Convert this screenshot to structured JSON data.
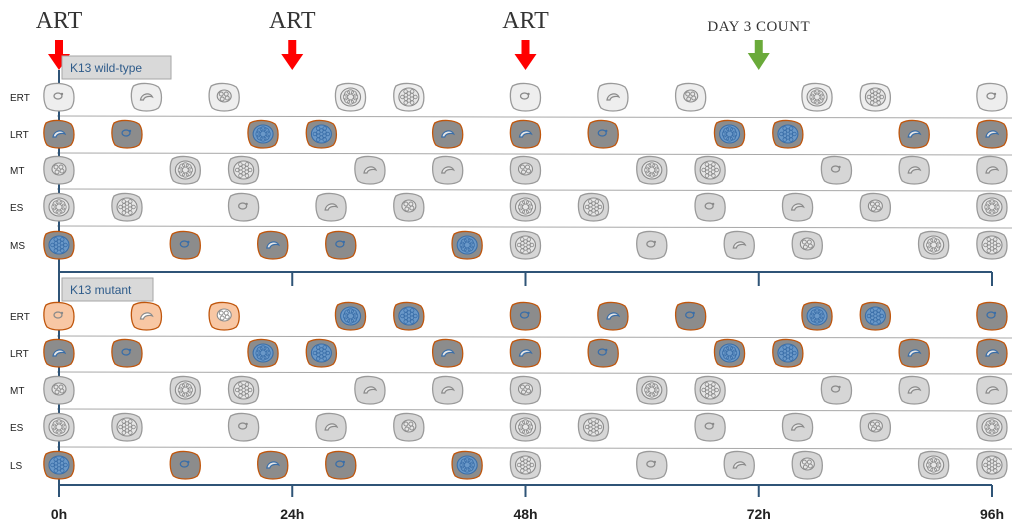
{
  "colors": {
    "art_arrow": "#ff0000",
    "count_arrow": "#6aaa3a",
    "axis": "#2f5477",
    "panel_label_bg": "#d9d9d9",
    "panel_label_text": "#2e5b8a",
    "cell_light": "#eeeeee",
    "cell_mid": "#d6d6d6",
    "cell_dark": "#8c8c8c",
    "cell_infected_outline": "#c0560c",
    "cell_peach": "#f8c7a4",
    "parasite_blue": "#3a6ea8"
  },
  "arrows": [
    {
      "label": "ART",
      "type": "art",
      "at_hours": 0
    },
    {
      "label": "ART",
      "type": "art",
      "at_hours": 24
    },
    {
      "label": "ART",
      "type": "art",
      "at_hours": 48
    },
    {
      "label": "DAY 3 COUNT",
      "type": "count",
      "at_hours": 72
    }
  ],
  "x_axis": {
    "ticks": [
      "0h",
      "24h",
      "48h",
      "72h",
      "96h"
    ],
    "hours": [
      0,
      24,
      48,
      72,
      96
    ]
  },
  "panels": [
    {
      "label": "K13 wild-type",
      "rows": [
        {
          "label": "ERT",
          "cells": [
            {
              "h": 0,
              "stage": "ring",
              "style": "white"
            },
            {
              "h": 9,
              "stage": "troph",
              "style": "white"
            },
            {
              "h": 17,
              "stage": "early-schiz",
              "style": "white"
            },
            {
              "h": 30,
              "stage": "schizont",
              "style": "white"
            },
            {
              "h": 36,
              "stage": "segmenter",
              "style": "white"
            },
            {
              "h": 48,
              "stage": "ring",
              "style": "white"
            },
            {
              "h": 57,
              "stage": "troph",
              "style": "white"
            },
            {
              "h": 65,
              "stage": "early-schiz",
              "style": "white"
            },
            {
              "h": 78,
              "stage": "schizont",
              "style": "white"
            },
            {
              "h": 84,
              "stage": "segmenter",
              "style": "white"
            },
            {
              "h": 96,
              "stage": "ring",
              "style": "white"
            }
          ]
        },
        {
          "label": "LRT",
          "cells": [
            {
              "h": 0,
              "stage": "troph",
              "style": "infected"
            },
            {
              "h": 7,
              "stage": "ring",
              "style": "infected"
            },
            {
              "h": 21,
              "stage": "schizont",
              "style": "infected-blue"
            },
            {
              "h": 27,
              "stage": "segmenter",
              "style": "infected-blue"
            },
            {
              "h": 40,
              "stage": "troph",
              "style": "infected"
            },
            {
              "h": 48,
              "stage": "troph",
              "style": "infected"
            },
            {
              "h": 56,
              "stage": "ring",
              "style": "infected"
            },
            {
              "h": 69,
              "stage": "schizont",
              "style": "infected-blue"
            },
            {
              "h": 75,
              "stage": "segmenter",
              "style": "infected-blue"
            },
            {
              "h": 88,
              "stage": "troph",
              "style": "infected"
            },
            {
              "h": 96,
              "stage": "troph",
              "style": "infected"
            }
          ]
        },
        {
          "label": "MT",
          "cells": [
            {
              "h": 0,
              "stage": "early-schiz",
              "style": "grey"
            },
            {
              "h": 13,
              "stage": "schizont",
              "style": "grey"
            },
            {
              "h": 19,
              "stage": "segmenter",
              "style": "grey"
            },
            {
              "h": 32,
              "stage": "troph",
              "style": "grey"
            },
            {
              "h": 40,
              "stage": "troph",
              "style": "grey"
            },
            {
              "h": 48,
              "stage": "early-schiz",
              "style": "grey"
            },
            {
              "h": 61,
              "stage": "schizont",
              "style": "grey"
            },
            {
              "h": 67,
              "stage": "segmenter",
              "style": "grey"
            },
            {
              "h": 80,
              "stage": "ring",
              "style": "grey"
            },
            {
              "h": 88,
              "stage": "troph",
              "style": "grey"
            },
            {
              "h": 96,
              "stage": "troph",
              "style": "grey"
            }
          ]
        },
        {
          "label": "ES",
          "cells": [
            {
              "h": 0,
              "stage": "schizont",
              "style": "grey"
            },
            {
              "h": 7,
              "stage": "segmenter",
              "style": "grey"
            },
            {
              "h": 19,
              "stage": "ring",
              "style": "grey"
            },
            {
              "h": 28,
              "stage": "troph",
              "style": "grey"
            },
            {
              "h": 36,
              "stage": "early-schiz",
              "style": "grey"
            },
            {
              "h": 48,
              "stage": "schizont",
              "style": "grey"
            },
            {
              "h": 55,
              "stage": "segmenter",
              "style": "grey"
            },
            {
              "h": 67,
              "stage": "ring",
              "style": "grey"
            },
            {
              "h": 76,
              "stage": "troph",
              "style": "grey"
            },
            {
              "h": 84,
              "stage": "early-schiz",
              "style": "grey"
            },
            {
              "h": 96,
              "stage": "schizont",
              "style": "grey"
            }
          ]
        },
        {
          "label": "MS",
          "cells": [
            {
              "h": 0,
              "stage": "segmenter",
              "style": "infected-blue"
            },
            {
              "h": 13,
              "stage": "ring",
              "style": "infected"
            },
            {
              "h": 22,
              "stage": "troph",
              "style": "infected"
            },
            {
              "h": 29,
              "stage": "ring",
              "style": "infected"
            },
            {
              "h": 42,
              "stage": "schizont",
              "style": "infected-blue"
            },
            {
              "h": 48,
              "stage": "segmenter",
              "style": "grey"
            },
            {
              "h": 61,
              "stage": "ring",
              "style": "grey"
            },
            {
              "h": 70,
              "stage": "troph",
              "style": "grey"
            },
            {
              "h": 77,
              "stage": "early-schiz",
              "style": "grey"
            },
            {
              "h": 90,
              "stage": "schizont",
              "style": "grey"
            },
            {
              "h": 96,
              "stage": "segmenter",
              "style": "grey"
            }
          ]
        }
      ]
    },
    {
      "label": "K13 mutant",
      "rows": [
        {
          "label": "ERT",
          "cells": [
            {
              "h": 0,
              "stage": "ring",
              "style": "peach"
            },
            {
              "h": 9,
              "stage": "troph",
              "style": "peach"
            },
            {
              "h": 17,
              "stage": "early-schiz",
              "style": "peach"
            },
            {
              "h": 30,
              "stage": "schizont",
              "style": "infected-blue"
            },
            {
              "h": 36,
              "stage": "segmenter",
              "style": "infected-blue"
            },
            {
              "h": 48,
              "stage": "ring",
              "style": "infected"
            },
            {
              "h": 57,
              "stage": "troph",
              "style": "infected"
            },
            {
              "h": 65,
              "stage": "ring",
              "style": "infected"
            },
            {
              "h": 78,
              "stage": "schizont",
              "style": "infected-blue"
            },
            {
              "h": 84,
              "stage": "segmenter",
              "style": "infected-blue"
            },
            {
              "h": 96,
              "stage": "ring",
              "style": "infected"
            }
          ]
        },
        {
          "label": "LRT",
          "cells": [
            {
              "h": 0,
              "stage": "troph",
              "style": "infected"
            },
            {
              "h": 7,
              "stage": "ring",
              "style": "infected"
            },
            {
              "h": 21,
              "stage": "schizont",
              "style": "infected-blue"
            },
            {
              "h": 27,
              "stage": "segmenter",
              "style": "infected-blue"
            },
            {
              "h": 40,
              "stage": "troph",
              "style": "infected"
            },
            {
              "h": 48,
              "stage": "troph",
              "style": "infected"
            },
            {
              "h": 56,
              "stage": "ring",
              "style": "infected"
            },
            {
              "h": 69,
              "stage": "schizont",
              "style": "infected-blue"
            },
            {
              "h": 75,
              "stage": "segmenter",
              "style": "infected-blue"
            },
            {
              "h": 88,
              "stage": "troph",
              "style": "infected"
            },
            {
              "h": 96,
              "stage": "troph",
              "style": "infected"
            }
          ]
        },
        {
          "label": "MT",
          "cells": [
            {
              "h": 0,
              "stage": "early-schiz",
              "style": "grey"
            },
            {
              "h": 13,
              "stage": "schizont",
              "style": "grey"
            },
            {
              "h": 19,
              "stage": "segmenter",
              "style": "grey"
            },
            {
              "h": 32,
              "stage": "troph",
              "style": "grey"
            },
            {
              "h": 40,
              "stage": "troph",
              "style": "grey"
            },
            {
              "h": 48,
              "stage": "early-schiz",
              "style": "grey"
            },
            {
              "h": 61,
              "stage": "schizont",
              "style": "grey"
            },
            {
              "h": 67,
              "stage": "segmenter",
              "style": "grey"
            },
            {
              "h": 80,
              "stage": "ring",
              "style": "grey"
            },
            {
              "h": 88,
              "stage": "troph",
              "style": "grey"
            },
            {
              "h": 96,
              "stage": "troph",
              "style": "grey"
            }
          ]
        },
        {
          "label": "ES",
          "cells": [
            {
              "h": 0,
              "stage": "schizont",
              "style": "grey"
            },
            {
              "h": 7,
              "stage": "segmenter",
              "style": "grey"
            },
            {
              "h": 19,
              "stage": "ring",
              "style": "grey"
            },
            {
              "h": 28,
              "stage": "troph",
              "style": "grey"
            },
            {
              "h": 36,
              "stage": "early-schiz",
              "style": "grey"
            },
            {
              "h": 48,
              "stage": "schizont",
              "style": "grey"
            },
            {
              "h": 55,
              "stage": "segmenter",
              "style": "grey"
            },
            {
              "h": 67,
              "stage": "ring",
              "style": "grey"
            },
            {
              "h": 76,
              "stage": "troph",
              "style": "grey"
            },
            {
              "h": 84,
              "stage": "early-schiz",
              "style": "grey"
            },
            {
              "h": 96,
              "stage": "schizont",
              "style": "grey"
            }
          ]
        },
        {
          "label": "LS",
          "cells": [
            {
              "h": 0,
              "stage": "segmenter",
              "style": "infected-blue"
            },
            {
              "h": 13,
              "stage": "ring",
              "style": "infected"
            },
            {
              "h": 22,
              "stage": "troph",
              "style": "infected"
            },
            {
              "h": 29,
              "stage": "ring",
              "style": "infected"
            },
            {
              "h": 42,
              "stage": "schizont",
              "style": "infected-blue"
            },
            {
              "h": 48,
              "stage": "segmenter",
              "style": "grey"
            },
            {
              "h": 61,
              "stage": "ring",
              "style": "grey"
            },
            {
              "h": 70,
              "stage": "troph",
              "style": "grey"
            },
            {
              "h": 77,
              "stage": "early-schiz",
              "style": "grey"
            },
            {
              "h": 90,
              "stage": "schizont",
              "style": "grey"
            },
            {
              "h": 96,
              "stage": "segmenter",
              "style": "grey"
            }
          ]
        }
      ]
    }
  ]
}
